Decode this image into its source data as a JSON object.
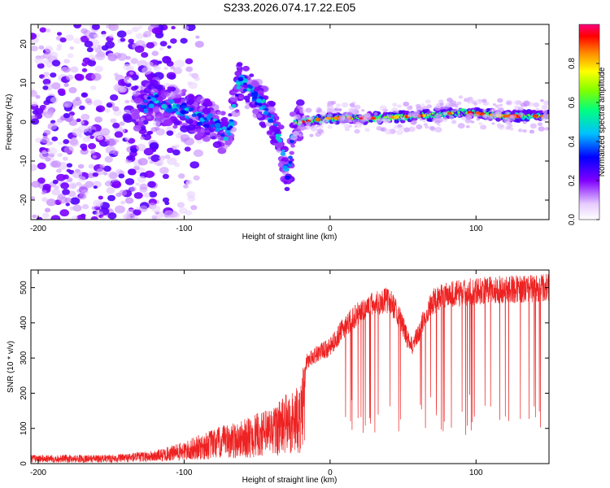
{
  "title": "S233.2026.074.17.22.E05",
  "chart_data": [
    {
      "type": "heatmap",
      "xlabel": "Height of straight line (km)",
      "ylabel": "Frequency (Hz)",
      "xlim": [
        -205,
        150
      ],
      "ylim": [
        -25,
        25
      ],
      "xticks": [
        -200,
        -100,
        0,
        100
      ],
      "yticks": [
        -20,
        -10,
        0,
        10,
        20
      ],
      "colorbar": {
        "label": "Normalized spectral amplitude",
        "range": [
          0,
          1
        ],
        "ticks": [
          "0.0",
          "0.2",
          "0.4",
          "0.6",
          "0.8"
        ],
        "tick_values": [
          0.0,
          0.2,
          0.4,
          0.6,
          0.8
        ]
      },
      "ridge": [
        {
          "x": -130,
          "y": 3
        },
        {
          "x": -120,
          "y": 6
        },
        {
          "x": -110,
          "y": 4
        },
        {
          "x": -100,
          "y": 3
        },
        {
          "x": -90,
          "y": 1
        },
        {
          "x": -80,
          "y": 0
        },
        {
          "x": -70,
          "y": -4
        },
        {
          "x": -62,
          "y": 11
        },
        {
          "x": -55,
          "y": 8
        },
        {
          "x": -48,
          "y": 5
        },
        {
          "x": -40,
          "y": 1
        },
        {
          "x": -35,
          "y": -4
        },
        {
          "x": -30,
          "y": -12
        },
        {
          "x": -28,
          "y": -14
        },
        {
          "x": -25,
          "y": 0
        },
        {
          "x": -20,
          "y": 0
        },
        {
          "x": 0,
          "y": 1
        },
        {
          "x": 30,
          "y": 1
        },
        {
          "x": 60,
          "y": 1.5
        },
        {
          "x": 90,
          "y": 2.5
        },
        {
          "x": 120,
          "y": 1.5
        },
        {
          "x": 150,
          "y": 1.5
        }
      ]
    },
    {
      "type": "line",
      "xlabel": "Height of straight line (km)",
      "ylabel": "SNR (10 * v/v)",
      "xlim": [
        -205,
        150
      ],
      "ylim": [
        0,
        550
      ],
      "xticks": [
        -200,
        -100,
        0,
        100
      ],
      "yticks": [
        0,
        100,
        200,
        300,
        400,
        500
      ],
      "color": "#ee2222",
      "envelope": [
        {
          "x": -205,
          "y": 20
        },
        {
          "x": -150,
          "y": 20
        },
        {
          "x": -120,
          "y": 30
        },
        {
          "x": -100,
          "y": 50
        },
        {
          "x": -80,
          "y": 80
        },
        {
          "x": -60,
          "y": 100
        },
        {
          "x": -40,
          "y": 130
        },
        {
          "x": -30,
          "y": 160
        },
        {
          "x": -20,
          "y": 180
        },
        {
          "x": -16,
          "y": 290
        },
        {
          "x": -10,
          "y": 310
        },
        {
          "x": 0,
          "y": 330
        },
        {
          "x": 10,
          "y": 390
        },
        {
          "x": 20,
          "y": 430
        },
        {
          "x": 30,
          "y": 455
        },
        {
          "x": 40,
          "y": 465
        },
        {
          "x": 45,
          "y": 440
        },
        {
          "x": 50,
          "y": 390
        },
        {
          "x": 55,
          "y": 330
        },
        {
          "x": 60,
          "y": 360
        },
        {
          "x": 65,
          "y": 420
        },
        {
          "x": 70,
          "y": 460
        },
        {
          "x": 80,
          "y": 480
        },
        {
          "x": 100,
          "y": 490
        },
        {
          "x": 120,
          "y": 495
        },
        {
          "x": 150,
          "y": 500
        }
      ]
    }
  ]
}
